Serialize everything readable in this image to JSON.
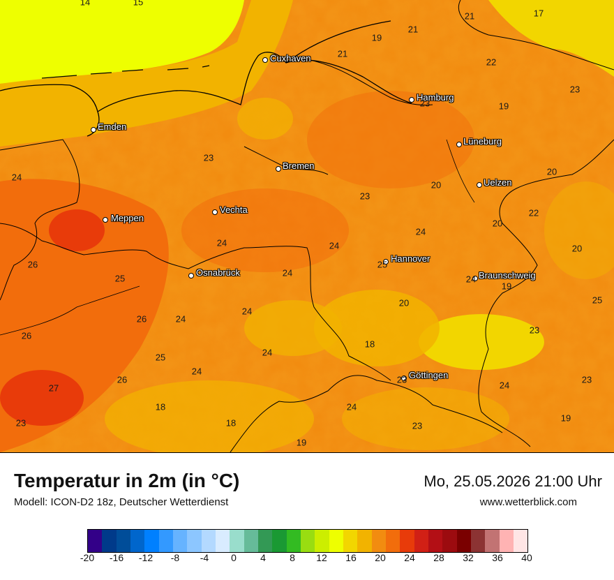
{
  "map": {
    "cities": [
      {
        "name": "Cuxhaven"
      },
      {
        "name": "Hamburg"
      },
      {
        "name": "Emden"
      },
      {
        "name": "Lüneburg"
      },
      {
        "name": "Bremen"
      },
      {
        "name": "Uelzen"
      },
      {
        "name": "Vechta"
      },
      {
        "name": "Meppen"
      },
      {
        "name": "Hannover"
      },
      {
        "name": "Osnabrück"
      },
      {
        "name": "Braunschweig"
      },
      {
        "name": "Göttingen"
      }
    ],
    "values": [
      "14",
      "15",
      "21",
      "17",
      "19",
      "21",
      "21",
      "22",
      "23",
      "23",
      "19",
      "24",
      "23",
      "20",
      "23",
      "20",
      "22",
      "20",
      "24",
      "24",
      "24",
      "20",
      "26",
      "25",
      "24",
      "19",
      "25",
      "24",
      "26",
      "24",
      "24",
      "18",
      "23",
      "26",
      "25",
      "24",
      "23",
      "27",
      "26",
      "24",
      "23",
      "18",
      "24",
      "23",
      "18",
      "23",
      "19",
      "19",
      "24",
      "25",
      "20"
    ]
  },
  "footer": {
    "title": "Temperatur in 2m (in °C)",
    "model": "Modell: ICON-D2 18z, Deutscher Wetterdienst",
    "datetime": "Mo, 25.05.2026 21:00 Uhr",
    "website": "www.wetterblick.com"
  },
  "legend": {
    "colors": [
      "#330088",
      "#003a8a",
      "#004d99",
      "#0066cc",
      "#0080ff",
      "#3399ff",
      "#66b3ff",
      "#8cc6ff",
      "#b3d9ff",
      "#d9ecff",
      "#99ddcc",
      "#66bb99",
      "#339955",
      "#1a9933",
      "#33bb22",
      "#99dd11",
      "#ccee00",
      "#eeff00",
      "#f2d600",
      "#f2b300",
      "#f28c10",
      "#f26d0c",
      "#e83b0a",
      "#d12015",
      "#b30f15",
      "#9c0b0f",
      "#7a0000",
      "#8c3333",
      "#c27373",
      "#ffb3b3",
      "#ffe5e5"
    ],
    "ticks": [
      "-20",
      "-16",
      "-12",
      "-8",
      "-4",
      "0",
      "4",
      "8",
      "12",
      "16",
      "20",
      "24",
      "28",
      "32",
      "36",
      "40"
    ]
  }
}
